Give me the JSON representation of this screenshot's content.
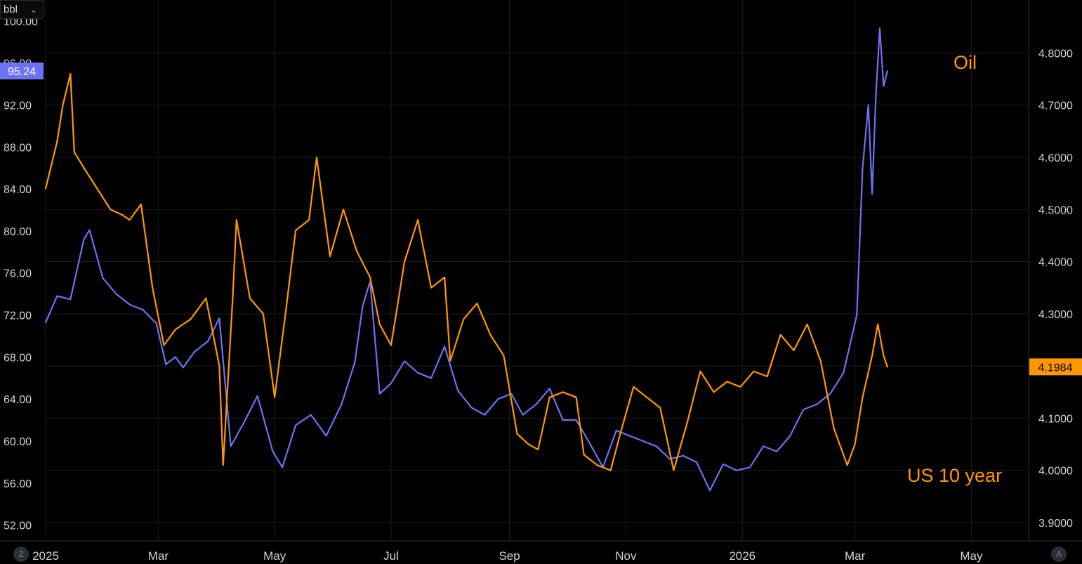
{
  "unit_selector": {
    "label": "bbl",
    "chevron_icon": "chevron-down-icon"
  },
  "corner_buttons": {
    "left": "Z",
    "right": "A"
  },
  "annotations": {
    "oil": "Oil",
    "us10": "US 10 year"
  },
  "colors": {
    "background": "#000000",
    "grid": "#1c1c1c",
    "oil": "#6b72f5",
    "yield": "#ff9800",
    "axis_text": "#d1d4dc"
  },
  "chart_data": {
    "type": "line",
    "title": "",
    "grid": true,
    "x_axis": {
      "type": "date",
      "range": [
        "2025-01-01",
        "2026-05-31"
      ],
      "ticks": [
        {
          "date": "2025-01-01",
          "label": "2025"
        },
        {
          "date": "2025-03-01",
          "label": "Mar"
        },
        {
          "date": "2025-05-01",
          "label": "May"
        },
        {
          "date": "2025-07-01",
          "label": "Jul"
        },
        {
          "date": "2025-09-01",
          "label": "Sep"
        },
        {
          "date": "2025-11-01",
          "label": "Nov"
        },
        {
          "date": "2026-01-01",
          "label": "2026"
        },
        {
          "date": "2026-03-01",
          "label": "Mar"
        },
        {
          "date": "2026-05-01",
          "label": "May"
        }
      ]
    },
    "left_axis": {
      "unit": "bbl",
      "range": [
        50.5,
        102
      ],
      "ticks": [
        "52.00",
        "56.00",
        "60.00",
        "64.00",
        "68.00",
        "72.00",
        "76.00",
        "80.00",
        "84.00",
        "88.00",
        "92.00",
        "96.00",
        "100.00"
      ],
      "last_value_label": "95.24",
      "last_value": 95.24
    },
    "right_axis": {
      "range": [
        3.865,
        4.9015
      ],
      "ticks": [
        "3.9000",
        "4.0000",
        "4.1000",
        "4.2000",
        "4.3000",
        "4.4000",
        "4.5000",
        "4.6000",
        "4.7000",
        "4.8000"
      ],
      "last_value_label": "4.1984",
      "last_value": 4.1984
    },
    "series": [
      {
        "axis": "left",
        "color": "#6b72f5",
        "points": [
          [
            "2025-01-01",
            71.3
          ],
          [
            "2025-01-07",
            73.8
          ],
          [
            "2025-01-14",
            73.5
          ],
          [
            "2025-01-21",
            79.2
          ],
          [
            "2025-01-24",
            80.1
          ],
          [
            "2025-01-31",
            75.5
          ],
          [
            "2025-02-07",
            74.0
          ],
          [
            "2025-02-14",
            73.0
          ],
          [
            "2025-02-21",
            72.5
          ],
          [
            "2025-02-28",
            71.2
          ],
          [
            "2025-03-05",
            67.3
          ],
          [
            "2025-03-10",
            68.0
          ],
          [
            "2025-03-14",
            67.0
          ],
          [
            "2025-03-20",
            68.5
          ],
          [
            "2025-03-27",
            69.5
          ],
          [
            "2025-04-02",
            71.7
          ],
          [
            "2025-04-08",
            59.5
          ],
          [
            "2025-04-15",
            61.8
          ],
          [
            "2025-04-22",
            64.3
          ],
          [
            "2025-04-30",
            59.0
          ],
          [
            "2025-05-05",
            57.5
          ],
          [
            "2025-05-12",
            61.5
          ],
          [
            "2025-05-20",
            62.5
          ],
          [
            "2025-05-28",
            60.5
          ],
          [
            "2025-06-05",
            63.5
          ],
          [
            "2025-06-12",
            67.5
          ],
          [
            "2025-06-16",
            72.8
          ],
          [
            "2025-06-20",
            75.2
          ],
          [
            "2025-06-25",
            64.5
          ],
          [
            "2025-07-01",
            65.5
          ],
          [
            "2025-07-08",
            67.6
          ],
          [
            "2025-07-15",
            66.5
          ],
          [
            "2025-07-22",
            66.0
          ],
          [
            "2025-07-29",
            69.0
          ],
          [
            "2025-08-05",
            64.8
          ],
          [
            "2025-08-12",
            63.2
          ],
          [
            "2025-08-19",
            62.5
          ],
          [
            "2025-08-26",
            64.0
          ],
          [
            "2025-09-02",
            64.5
          ],
          [
            "2025-09-08",
            62.5
          ],
          [
            "2025-09-15",
            63.5
          ],
          [
            "2025-09-22",
            65.0
          ],
          [
            "2025-09-29",
            62.0
          ],
          [
            "2025-10-06",
            62.0
          ],
          [
            "2025-10-13",
            59.8
          ],
          [
            "2025-10-20",
            57.5
          ],
          [
            "2025-10-27",
            61.0
          ],
          [
            "2025-11-03",
            60.5
          ],
          [
            "2025-11-10",
            60.0
          ],
          [
            "2025-11-17",
            59.5
          ],
          [
            "2025-11-24",
            58.3
          ],
          [
            "2025-12-01",
            58.6
          ],
          [
            "2025-12-08",
            58.0
          ],
          [
            "2025-12-15",
            55.3
          ],
          [
            "2025-12-22",
            57.8
          ],
          [
            "2025-12-29",
            57.2
          ],
          [
            "2026-01-05",
            57.5
          ],
          [
            "2026-01-12",
            59.5
          ],
          [
            "2026-01-19",
            59.0
          ],
          [
            "2026-01-26",
            60.5
          ],
          [
            "2026-02-02",
            63.0
          ],
          [
            "2026-02-09",
            63.5
          ],
          [
            "2026-02-16",
            64.5
          ],
          [
            "2026-02-23",
            66.5
          ],
          [
            "2026-03-02",
            72.0
          ],
          [
            "2026-03-05",
            86.0
          ],
          [
            "2026-03-08",
            92.0
          ],
          [
            "2026-03-10",
            83.5
          ],
          [
            "2026-03-12",
            93.0
          ],
          [
            "2026-03-14",
            99.3
          ],
          [
            "2026-03-16",
            93.8
          ],
          [
            "2026-03-18",
            95.24
          ]
        ]
      },
      {
        "axis": "right",
        "color": "#ff9800",
        "points": [
          [
            "2025-01-01",
            4.54
          ],
          [
            "2025-01-07",
            4.63
          ],
          [
            "2025-01-10",
            4.7
          ],
          [
            "2025-01-14",
            4.76
          ],
          [
            "2025-01-16",
            4.61
          ],
          [
            "2025-01-21",
            4.58
          ],
          [
            "2025-01-28",
            4.54
          ],
          [
            "2025-02-04",
            4.5
          ],
          [
            "2025-02-10",
            4.49
          ],
          [
            "2025-02-14",
            4.48
          ],
          [
            "2025-02-20",
            4.51
          ],
          [
            "2025-02-26",
            4.35
          ],
          [
            "2025-03-04",
            4.24
          ],
          [
            "2025-03-10",
            4.27
          ],
          [
            "2025-03-18",
            4.29
          ],
          [
            "2025-03-26",
            4.33
          ],
          [
            "2025-04-02",
            4.2
          ],
          [
            "2025-04-04",
            4.01
          ],
          [
            "2025-04-09",
            4.33
          ],
          [
            "2025-04-11",
            4.48
          ],
          [
            "2025-04-18",
            4.33
          ],
          [
            "2025-04-25",
            4.3
          ],
          [
            "2025-05-01",
            4.14
          ],
          [
            "2025-05-07",
            4.31
          ],
          [
            "2025-05-12",
            4.46
          ],
          [
            "2025-05-19",
            4.48
          ],
          [
            "2025-05-23",
            4.6
          ],
          [
            "2025-05-30",
            4.41
          ],
          [
            "2025-06-06",
            4.5
          ],
          [
            "2025-06-13",
            4.42
          ],
          [
            "2025-06-20",
            4.37
          ],
          [
            "2025-06-25",
            4.28
          ],
          [
            "2025-07-01",
            4.24
          ],
          [
            "2025-07-08",
            4.4
          ],
          [
            "2025-07-15",
            4.48
          ],
          [
            "2025-07-22",
            4.35
          ],
          [
            "2025-07-29",
            4.37
          ],
          [
            "2025-08-01",
            4.21
          ],
          [
            "2025-08-08",
            4.29
          ],
          [
            "2025-08-15",
            4.32
          ],
          [
            "2025-08-22",
            4.26
          ],
          [
            "2025-08-29",
            4.22
          ],
          [
            "2025-09-05",
            4.07
          ],
          [
            "2025-09-11",
            4.05
          ],
          [
            "2025-09-16",
            4.04
          ],
          [
            "2025-09-22",
            4.14
          ],
          [
            "2025-09-29",
            4.15
          ],
          [
            "2025-10-06",
            4.14
          ],
          [
            "2025-10-10",
            4.03
          ],
          [
            "2025-10-17",
            4.01
          ],
          [
            "2025-10-24",
            4.0
          ],
          [
            "2025-10-29",
            4.07
          ],
          [
            "2025-11-05",
            4.16
          ],
          [
            "2025-11-12",
            4.14
          ],
          [
            "2025-11-19",
            4.12
          ],
          [
            "2025-11-26",
            4.0
          ],
          [
            "2025-12-03",
            4.09
          ],
          [
            "2025-12-10",
            4.19
          ],
          [
            "2025-12-17",
            4.15
          ],
          [
            "2025-12-24",
            4.17
          ],
          [
            "2025-12-31",
            4.16
          ],
          [
            "2026-01-07",
            4.19
          ],
          [
            "2026-01-14",
            4.18
          ],
          [
            "2026-01-21",
            4.26
          ],
          [
            "2026-01-28",
            4.23
          ],
          [
            "2026-02-04",
            4.28
          ],
          [
            "2026-02-11",
            4.21
          ],
          [
            "2026-02-18",
            4.08
          ],
          [
            "2026-02-25",
            4.01
          ],
          [
            "2026-03-01",
            4.05
          ],
          [
            "2026-03-05",
            4.14
          ],
          [
            "2026-03-10",
            4.22
          ],
          [
            "2026-03-13",
            4.28
          ],
          [
            "2026-03-16",
            4.22
          ],
          [
            "2026-03-18",
            4.1984
          ]
        ]
      }
    ]
  }
}
